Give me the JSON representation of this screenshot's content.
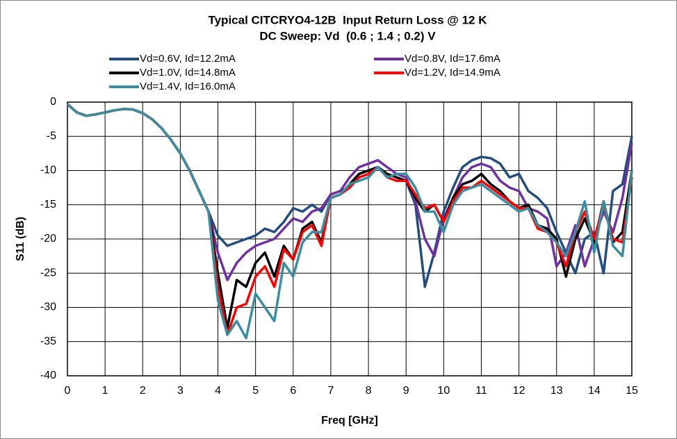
{
  "chart_data": {
    "type": "line",
    "title": "Typical CITCRYO4-12B  Input Return Loss @ 12 K",
    "subtitle": "DC Sweep: Vd  (0.6 ; 1.4 ; 0.2) V",
    "x_label": "Freq [GHz]",
    "y_label": "S11 (dB)",
    "x": [
      0,
      0.25,
      0.5,
      0.75,
      1,
      1.25,
      1.5,
      1.75,
      2,
      2.25,
      2.5,
      2.75,
      3,
      3.25,
      3.5,
      3.75,
      4,
      4.25,
      4.5,
      4.75,
      5,
      5.25,
      5.5,
      5.75,
      6,
      6.25,
      6.5,
      6.75,
      7,
      7.25,
      7.5,
      7.75,
      8,
      8.25,
      8.5,
      8.75,
      9,
      9.25,
      9.5,
      9.75,
      10,
      10.25,
      10.5,
      10.75,
      11,
      11.25,
      11.5,
      11.75,
      12,
      12.25,
      12.5,
      12.75,
      13,
      13.25,
      13.5,
      13.75,
      14,
      14.25,
      14.5,
      14.75,
      15
    ],
    "series": [
      {
        "name": "Vd=0.6V, Id=12.2mA",
        "color": "#234d7e",
        "values": [
          -0.3,
          -1.5,
          -2,
          -1.8,
          -1.5,
          -1.2,
          -1,
          -1.1,
          -1.6,
          -2.5,
          -3.8,
          -5.5,
          -7.5,
          -10,
          -13,
          -16,
          -19.5,
          -21,
          -20.5,
          -20,
          -19.5,
          -18.5,
          -19,
          -17.5,
          -15.5,
          -16,
          -15,
          -16,
          -13.5,
          -13,
          -12.5,
          -10.5,
          -10,
          -9.5,
          -10.5,
          -11,
          -11.5,
          -15,
          -27,
          -22,
          -16,
          -12.5,
          -9.5,
          -8.5,
          -8,
          -8.2,
          -9,
          -11,
          -10.5,
          -13,
          -14,
          -15.5,
          -19,
          -22,
          -25,
          -20,
          -19,
          -25,
          -13,
          -12,
          -5
        ]
      },
      {
        "name": "Vd=0.8V, Id=17.6mA",
        "color": "#7030a0",
        "values": [
          -0.3,
          -1.5,
          -2,
          -1.8,
          -1.5,
          -1.2,
          -1,
          -1.1,
          -1.6,
          -2.5,
          -3.8,
          -5.5,
          -7.5,
          -10,
          -13,
          -16,
          -22,
          -26,
          -23.5,
          -22,
          -21,
          -20.5,
          -20,
          -18.5,
          -17,
          -17.5,
          -16,
          -15.5,
          -13.5,
          -13,
          -11,
          -9.5,
          -9,
          -8.5,
          -9.5,
          -10.5,
          -11,
          -14.5,
          -20,
          -22.5,
          -17,
          -14,
          -11,
          -9.5,
          -9,
          -9.5,
          -11.5,
          -12.5,
          -13,
          -15.5,
          -16,
          -17,
          -24,
          -22,
          -18,
          -24,
          -20,
          -16,
          -19,
          -14,
          -6
        ]
      },
      {
        "name": "Vd=1.0V, Id=14.8mA",
        "color": "#000000",
        "values": [
          -0.3,
          -1.5,
          -2,
          -1.8,
          -1.5,
          -1.2,
          -1,
          -1.1,
          -1.6,
          -2.5,
          -3.8,
          -5.5,
          -7.5,
          -10,
          -13,
          -16,
          -25,
          -33,
          -26,
          -27,
          -23.5,
          -22,
          -25.5,
          -21,
          -23,
          -18.5,
          -17.5,
          -20.5,
          -14,
          -13.5,
          -12,
          -10.5,
          -10,
          -9.5,
          -10.5,
          -11,
          -11.5,
          -14,
          -16,
          -15,
          -17.5,
          -14,
          -12,
          -11.5,
          -10.5,
          -12,
          -13,
          -14.5,
          -15.5,
          -15,
          -18,
          -18.5,
          -20,
          -25.5,
          -20,
          -17,
          -20.5,
          -14.5,
          -20.5,
          -19,
          -10
        ]
      },
      {
        "name": "Vd=1.2V, Id=14.9mA",
        "color": "#ff0000",
        "values": [
          -0.3,
          -1.5,
          -2,
          -1.8,
          -1.5,
          -1.2,
          -1,
          -1.1,
          -1.6,
          -2.5,
          -3.8,
          -5.5,
          -7.5,
          -10,
          -13,
          -16,
          -27,
          -34,
          -30,
          -29.5,
          -25.5,
          -24,
          -27,
          -21.5,
          -23,
          -19,
          -18,
          -21,
          -14,
          -13.5,
          -12.5,
          -11,
          -10.5,
          -9.5,
          -11,
          -11.5,
          -11.5,
          -13.5,
          -15.5,
          -15,
          -17.5,
          -14.5,
          -12.5,
          -12.5,
          -11.5,
          -12.5,
          -13.5,
          -14.5,
          -15.5,
          -15.5,
          -18.5,
          -19,
          -20.5,
          -24,
          -19,
          -16,
          -20,
          -15,
          -20,
          -20.5,
          -11
        ]
      },
      {
        "name": "Vd=1.4V, Id=16.0mA",
        "color": "#3a8ea0",
        "values": [
          -0.3,
          -1.5,
          -2,
          -1.8,
          -1.5,
          -1.2,
          -1,
          -1.1,
          -1.6,
          -2.5,
          -3.8,
          -5.5,
          -7.5,
          -10,
          -13,
          -16,
          -29,
          -34,
          -32,
          -34.5,
          -28,
          -30,
          -32,
          -23.5,
          -25.5,
          -20.5,
          -19,
          -19,
          -14,
          -13.5,
          -12,
          -11.5,
          -11,
          -9.5,
          -11,
          -10.5,
          -10.5,
          -12.5,
          -16,
          -16,
          -19,
          -15,
          -13,
          -12.5,
          -12,
          -13,
          -14,
          -15,
          -16,
          -15.5,
          -18,
          -19,
          -20.5,
          -22.5,
          -19,
          -14.5,
          -22,
          -14.5,
          -21,
          -22.5,
          -10
        ]
      }
    ],
    "xlim": [
      0,
      15
    ],
    "xticks": [
      0,
      1,
      2,
      3,
      4,
      5,
      6,
      7,
      8,
      9,
      10,
      11,
      12,
      13,
      14,
      15
    ],
    "ylim": [
      -40,
      0
    ],
    "yticks": [
      -40,
      -35,
      -30,
      -25,
      -20,
      -15,
      -10,
      -5,
      0
    ],
    "grid": true,
    "legend": "top"
  }
}
